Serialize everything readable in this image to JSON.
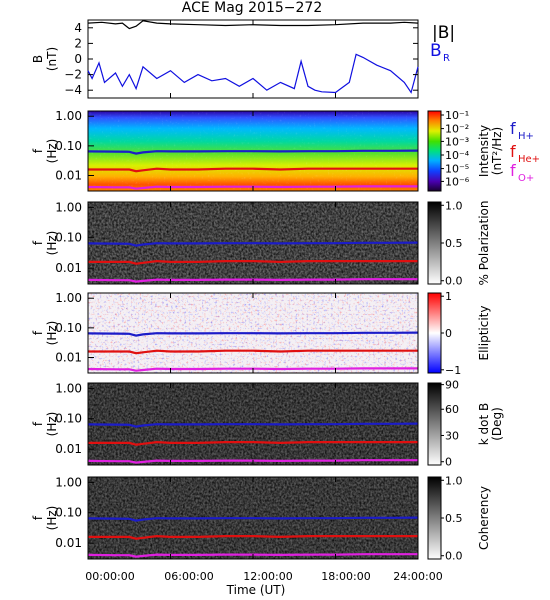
{
  "title": "ACE Mag 2015−272",
  "x_axis": {
    "label": "Time (UT)",
    "ticks": [
      "00:00:00",
      "06:00:00",
      "12:00:00",
      "18:00:00",
      "24:00:00"
    ],
    "range_hours": [
      0,
      24
    ]
  },
  "panel_b": {
    "ylabel_main": "B",
    "ylabel_unit": "(nT)",
    "yticks": [
      "4",
      "2",
      "0",
      "−2",
      "−4"
    ],
    "legend": [
      {
        "text": "|B|",
        "color": "#000000"
      },
      {
        "text": "B",
        "sub": "R",
        "color": "#1010e0"
      }
    ]
  },
  "freq_axis": {
    "ylabel_main": "f",
    "ylabel_unit": "(Hz)",
    "yticks": [
      "1.00",
      "0.10",
      "0.01"
    ]
  },
  "line_legend": [
    {
      "text": "f",
      "sub": "H+",
      "color": "#1c1cc8"
    },
    {
      "text": "f",
      "sub": "He+",
      "color": "#e01010"
    },
    {
      "text": "f",
      "sub": "O+",
      "color": "#e020e0"
    }
  ],
  "colorbars": {
    "intensity": {
      "label": "Intensity",
      "unit": "(nT²/Hz)",
      "ticks": [
        "10⁻¹",
        "10⁻²",
        "10⁻³",
        "10⁻⁴",
        "10⁻⁵",
        "10⁻⁶"
      ]
    },
    "polarization": {
      "label": "% Polarization",
      "ticks": [
        "1.0",
        "0.5",
        "0.0"
      ]
    },
    "ellipticity": {
      "label": "Ellipticity",
      "ticks": [
        "1",
        "0",
        "−1"
      ]
    },
    "kdotb": {
      "label": "k dot B",
      "unit": "(Deg)",
      "ticks": [
        "90",
        "60",
        "30",
        "0"
      ]
    },
    "coherency": {
      "label": "Coherency",
      "ticks": [
        "1.0",
        "0.5",
        "0.0"
      ]
    }
  },
  "colors": {
    "bmag": "#000000",
    "br": "#1010e0",
    "fH": "#1c1cc8",
    "fHe": "#e01010",
    "fO": "#e020e0"
  },
  "chart_data": {
    "type": "line",
    "title": "ACE Mag 2015−272",
    "xlabel": "Time (UT)",
    "xlim": [
      0,
      24
    ],
    "panels": [
      {
        "name": "B",
        "ylabel": "B (nT)",
        "ylim": [
          -5,
          5
        ],
        "series": [
          {
            "name": "|B|",
            "x": [
              0,
              1,
              2,
              2.5,
              3,
              3.5,
              4,
              5,
              6,
              8,
              10,
              12,
              14,
              16,
              18,
              20,
              22,
              23,
              24
            ],
            "values": [
              4.6,
              4.7,
              4.5,
              4.6,
              3.9,
              4.2,
              4.9,
              4.6,
              4.5,
              4.4,
              4.3,
              4.4,
              4.3,
              4.3,
              4.4,
              4.6,
              4.6,
              4.7,
              4.6
            ]
          },
          {
            "name": "B_R",
            "x": [
              0,
              0.3,
              0.8,
              1.2,
              2,
              2.5,
              3,
              3.5,
              4,
              5,
              6,
              7,
              8,
              9,
              10,
              11,
              12,
              13,
              14,
              15,
              15.5,
              16,
              16.5,
              17,
              18,
              19,
              19.5,
              20,
              21,
              22,
              23,
              23.5,
              24
            ],
            "values": [
              -1.5,
              -2.5,
              -0.5,
              -3.0,
              -1.8,
              -3.5,
              -2.0,
              -3.8,
              -1.0,
              -2.5,
              -1.5,
              -3.0,
              -2.0,
              -2.8,
              -2.5,
              -3.5,
              -2.5,
              -4.0,
              -3.0,
              -3.8,
              -0.3,
              -3.5,
              -4.0,
              -4.2,
              -4.3,
              -3.0,
              0.6,
              0.2,
              -0.8,
              -1.5,
              -3.0,
              -4.3,
              -1.0
            ]
          }
        ]
      },
      {
        "name": "Spectrogram panels (Intensity, % Polarization, Ellipticity, k dot B, Coherency)",
        "ylabel": "f (Hz)",
        "yscale": "log",
        "ylim": [
          0.003,
          1.5
        ],
        "series": [
          {
            "name": "f_H+",
            "x": [
              0,
              2,
              3,
              3.5,
              4,
              5,
              6,
              8,
              10,
              12,
              14,
              16,
              18,
              20,
              22,
              24
            ],
            "values": [
              0.065,
              0.064,
              0.063,
              0.055,
              0.06,
              0.066,
              0.065,
              0.065,
              0.066,
              0.066,
              0.065,
              0.066,
              0.066,
              0.068,
              0.068,
              0.069
            ]
          },
          {
            "name": "f_He+",
            "x": [
              0,
              2,
              3,
              3.5,
              4,
              5,
              6,
              8,
              10,
              12,
              14,
              16,
              18,
              20,
              22,
              24
            ],
            "values": [
              0.016,
              0.016,
              0.016,
              0.014,
              0.015,
              0.017,
              0.016,
              0.016,
              0.017,
              0.017,
              0.016,
              0.017,
              0.017,
              0.017,
              0.017,
              0.017
            ]
          },
          {
            "name": "f_O+",
            "x": [
              0,
              2,
              3,
              3.5,
              4,
              5,
              6,
              8,
              10,
              12,
              14,
              16,
              18,
              20,
              22,
              24
            ],
            "values": [
              0.0041,
              0.004,
              0.004,
              0.0036,
              0.0038,
              0.0042,
              0.0041,
              0.0041,
              0.0042,
              0.0042,
              0.0041,
              0.0042,
              0.0042,
              0.0043,
              0.0043,
              0.0043
            ]
          }
        ]
      }
    ]
  }
}
